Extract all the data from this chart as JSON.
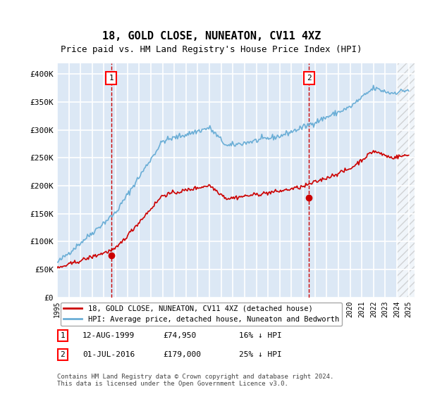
{
  "title": "18, GOLD CLOSE, NUNEATON, CV11 4XZ",
  "subtitle": "Price paid vs. HM Land Registry's House Price Index (HPI)",
  "ylabel_ticks": [
    "£0",
    "£50K",
    "£100K",
    "£150K",
    "£200K",
    "£250K",
    "£300K",
    "£350K",
    "£400K"
  ],
  "ylim": [
    0,
    420000
  ],
  "xlim_start": 1995,
  "xlim_end": 2025.5,
  "sale1_year": 1999.617,
  "sale1_price": 74950,
  "sale1_label": "1",
  "sale1_date": "12-AUG-1999",
  "sale1_price_str": "£74,950",
  "sale1_pct": "16%",
  "sale2_year": 2016.5,
  "sale2_price": 179000,
  "sale2_label": "2",
  "sale2_date": "01-JUL-2016",
  "sale2_price_str": "£179,000",
  "sale2_pct": "25%",
  "legend_red": "18, GOLD CLOSE, NUNEATON, CV11 4XZ (detached house)",
  "legend_blue": "HPI: Average price, detached house, Nuneaton and Bedworth",
  "footer": "Contains HM Land Registry data © Crown copyright and database right 2024.\nThis data is licensed under the Open Government Licence v3.0.",
  "hpi_color": "#6baed6",
  "price_color": "#cc0000",
  "bg_color": "#dce8f5",
  "grid_color": "#ffffff",
  "dashed_color": "#cc0000"
}
